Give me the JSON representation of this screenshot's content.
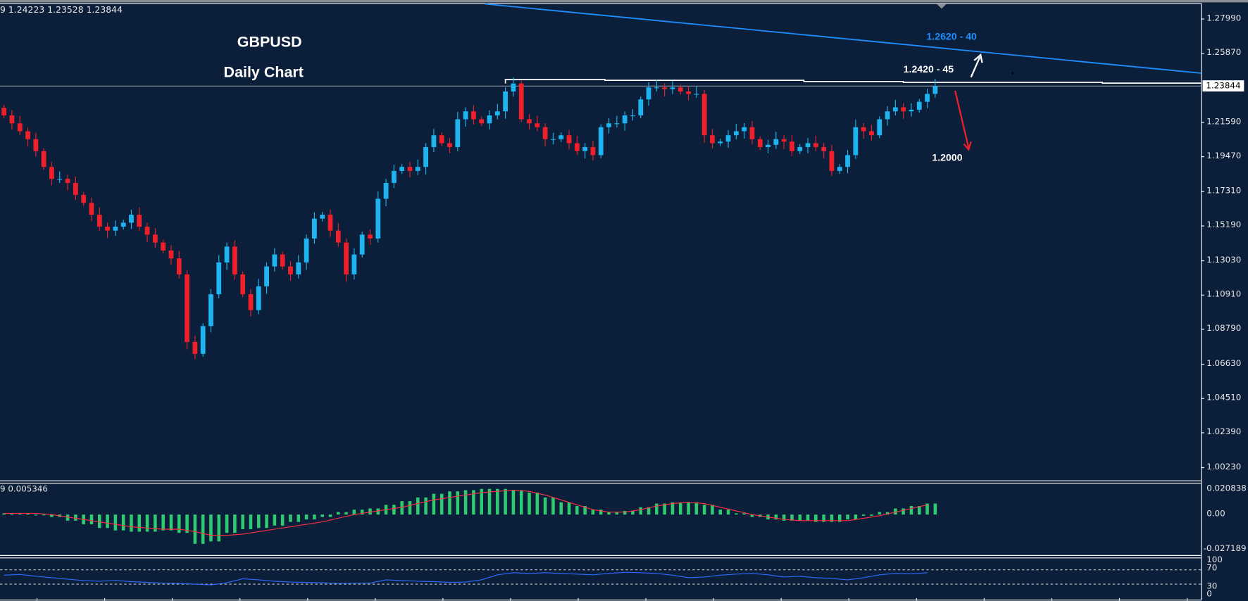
{
  "header": {
    "ohlc_readout": "9 1.24223 1.23528 1.23844"
  },
  "title": {
    "symbol": "GBPUSD",
    "timeframe": "Daily Chart"
  },
  "colors": {
    "background": "#0b1f3b",
    "bull": "#1eb4f0",
    "bear": "#f0202a",
    "trendline": "#1e8fff",
    "macd_hist": "#2ecc71",
    "macd_signal": "#ff3040",
    "rsi": "#2f6cff"
  },
  "annotations": {
    "resistance_trendline_label": "1.2620 - 40",
    "resistance_level_label": "1.2420 - 45",
    "support_target_label": "1.2000"
  },
  "chart_data": {
    "type": "candlestick",
    "current_price": "1.23844",
    "y_ticks": [
      "1.27990",
      "1.25870",
      "1.21590",
      "1.19470",
      "1.17310",
      "1.15190",
      "1.13030",
      "1.10910",
      "1.08790",
      "1.06630",
      "1.04510",
      "1.02390",
      "1.00230"
    ],
    "ylim": [
      1.0023,
      1.2799
    ],
    "first_open": 1.225,
    "closes": [
      1.2203,
      1.2154,
      1.2105,
      1.2056,
      1.1982,
      1.1884,
      1.181,
      1.181,
      1.1785,
      1.1711,
      1.1662,
      1.1588,
      1.1514,
      1.149,
      1.1514,
      1.1539,
      1.1588,
      1.1514,
      1.1465,
      1.1416,
      1.1367,
      1.1318,
      1.1219,
      1.0801,
      1.0727,
      1.0899,
      1.1096,
      1.1293,
      1.1391,
      1.1219,
      1.1096,
      1.0998,
      1.1145,
      1.1268,
      1.1342,
      1.1268,
      1.1219,
      1.1293,
      1.1441,
      1.1564,
      1.1588,
      1.149,
      1.1416,
      1.1219,
      1.1342,
      1.1465,
      1.1441,
      1.1687,
      1.1785,
      1.1859,
      1.1884,
      1.1859,
      1.1884,
      1.2007,
      1.208,
      1.2031,
      1.2007,
      1.2179,
      1.2228,
      1.2179,
      1.2154,
      1.2203,
      1.2228,
      1.2351,
      1.24,
      1.2179,
      1.2154,
      1.213,
      1.2056,
      1.2056,
      1.208,
      1.2031,
      1.1982,
      1.2007,
      1.1957,
      1.213,
      1.2154,
      1.2154,
      1.2203,
      1.2203,
      1.2302,
      1.2376,
      1.2376,
      1.2366,
      1.2376,
      1.2351,
      1.2336,
      1.2336,
      1.208,
      1.2031,
      1.2041,
      1.208,
      1.2105,
      1.213,
      1.2056,
      1.2007,
      1.2021,
      1.2056,
      1.2041,
      1.1982,
      1.2007,
      1.2031,
      1.2007,
      1.1982,
      1.1859,
      1.1884,
      1.1957,
      1.213,
      1.2105,
      1.208,
      1.2179,
      1.2228,
      1.2253,
      1.2228,
      1.2238,
      1.2287,
      1.2336,
      1.23844
    ],
    "resistance_level": 1.242,
    "macd": {
      "readout": "9 0.005346",
      "y_ticks": [
        "0.020838",
        "0.00",
        "-0.027189"
      ],
      "histogram": [
        0.001,
        0.001,
        0.0,
        -0.002,
        -0.005,
        -0.008,
        -0.011,
        -0.013,
        -0.014,
        -0.014,
        -0.013,
        -0.015,
        -0.024,
        -0.022,
        -0.015,
        -0.012,
        -0.011,
        -0.009,
        -0.006,
        -0.004,
        -0.002,
        0.002,
        0.004,
        0.005,
        0.008,
        0.011,
        0.014,
        0.017,
        0.019,
        0.02,
        0.021,
        0.021,
        0.02,
        0.018,
        0.014,
        0.01,
        0.007,
        0.004,
        0.002,
        0.003,
        0.006,
        0.009,
        0.01,
        0.01,
        0.008,
        0.004,
        0.001,
        -0.002,
        -0.004,
        -0.005,
        -0.005,
        -0.006,
        -0.006,
        -0.004,
        -0.001,
        0.002,
        0.005,
        0.007,
        0.009
      ],
      "signal": [
        0.001,
        0.001,
        0.001,
        0.0,
        -0.002,
        -0.004,
        -0.006,
        -0.008,
        -0.01,
        -0.011,
        -0.012,
        -0.012,
        -0.014,
        -0.017,
        -0.017,
        -0.016,
        -0.014,
        -0.012,
        -0.01,
        -0.008,
        -0.006,
        -0.003,
        0.0,
        0.002,
        0.004,
        0.006,
        0.009,
        0.012,
        0.014,
        0.016,
        0.018,
        0.019,
        0.02,
        0.019,
        0.016,
        0.012,
        0.008,
        0.004,
        0.002,
        0.002,
        0.004,
        0.007,
        0.009,
        0.01,
        0.009,
        0.006,
        0.003,
        0.0,
        -0.002,
        -0.004,
        -0.005,
        -0.005,
        -0.005,
        -0.005,
        -0.003,
        -0.001,
        0.002,
        0.005,
        0.008
      ]
    },
    "rsi": {
      "y_ticks": [
        "100",
        "70",
        "30",
        "0"
      ],
      "levels": [
        70,
        30
      ],
      "values": [
        55,
        57,
        52,
        48,
        44,
        40,
        38,
        40,
        37,
        35,
        33,
        32,
        30,
        28,
        34,
        45,
        42,
        38,
        36,
        35,
        34,
        32,
        33,
        33,
        42,
        40,
        38,
        37,
        35,
        36,
        42,
        56,
        62,
        60,
        62,
        60,
        58,
        56,
        60,
        63,
        62,
        60,
        55,
        48,
        50,
        55,
        58,
        60,
        56,
        50,
        52,
        48,
        46,
        42,
        48,
        56,
        60,
        59,
        62
      ]
    }
  }
}
